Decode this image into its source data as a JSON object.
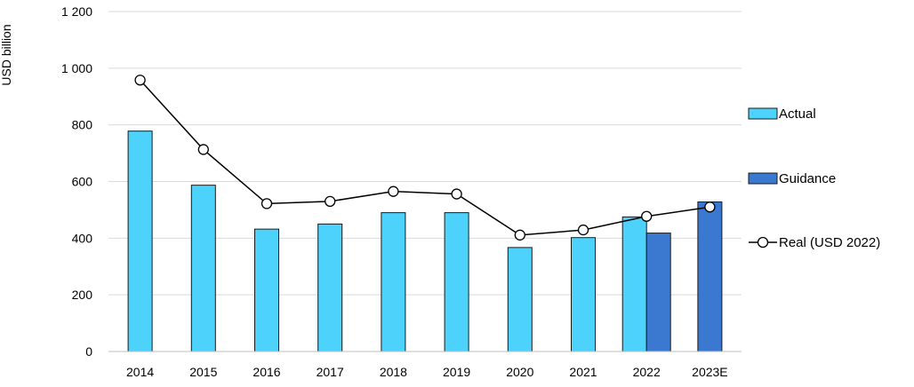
{
  "chart_data": {
    "type": "bar",
    "ylabel": "USD billion",
    "ylim": [
      0,
      1200
    ],
    "yticks": [
      0,
      200,
      400,
      600,
      800,
      1000,
      1200
    ],
    "ytick_labels": [
      "0",
      "200",
      "400",
      "600",
      "800",
      "1 000",
      "1 200"
    ],
    "grid": "horizontal",
    "legend_position": "right",
    "categories": [
      "2014",
      "2015",
      "2016",
      "2017",
      "2018",
      "2019",
      "2020",
      "2021",
      "2022",
      "2023E"
    ],
    "series": [
      {
        "name": "Actual",
        "type": "bar",
        "color": "#4DD2FB",
        "values": [
          778,
          587,
          432,
          450,
          490,
          490,
          367,
          402,
          475,
          null
        ]
      },
      {
        "name": "Guidance",
        "type": "bar",
        "color": "#3B78D0",
        "values": [
          null,
          null,
          null,
          null,
          null,
          null,
          null,
          null,
          418,
          528
        ]
      },
      {
        "name": "Real (USD 2022)",
        "type": "line",
        "color": "#000000",
        "values": [
          958,
          713,
          522,
          530,
          565,
          556,
          411,
          429,
          477,
          510
        ]
      }
    ]
  }
}
